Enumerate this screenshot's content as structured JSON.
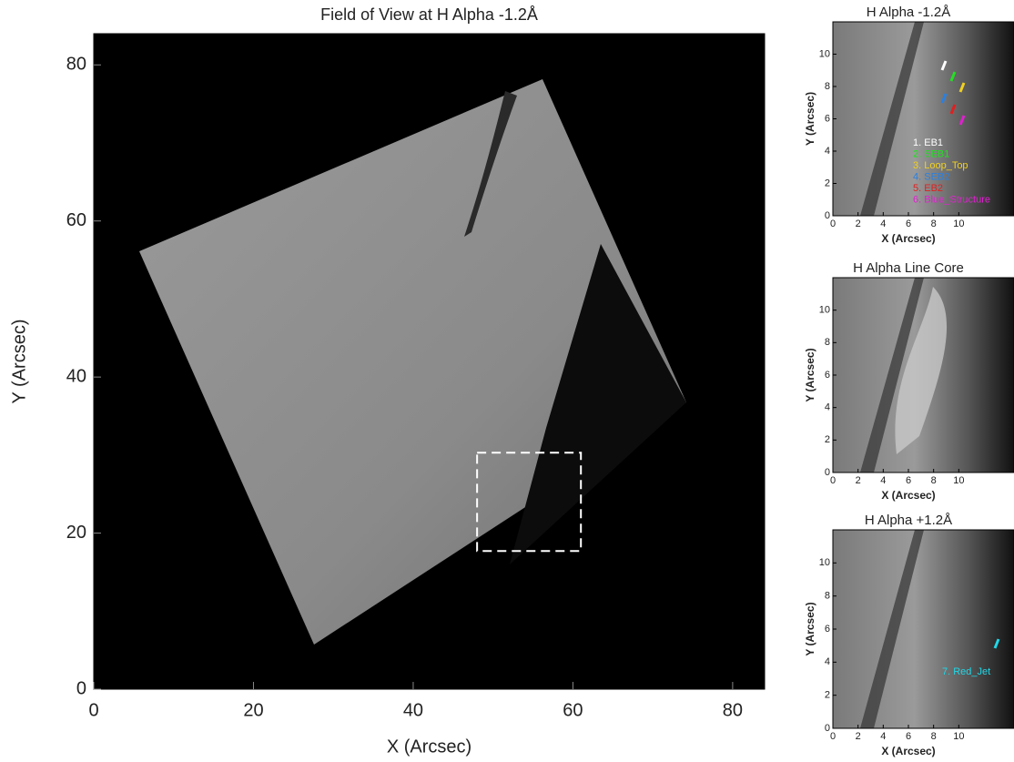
{
  "chart_data": [
    {
      "type": "image",
      "title": "Field of View at H Alpha -1.2Å",
      "x_label": "X (Arcsec)",
      "y_label": "Y (Arcsec)",
      "xlim": [
        0,
        84
      ],
      "ylim": [
        0,
        84
      ],
      "xticks": [
        0,
        20,
        40,
        60,
        80
      ],
      "yticks": [
        0,
        20,
        40,
        60,
        80
      ],
      "region": {
        "xlim": [
          48,
          61
        ],
        "ylim": [
          17.7,
          30.3
        ]
      }
    },
    {
      "type": "image",
      "title": "H Alpha -1.2Å",
      "x_label": "X (Arcsec)",
      "y_label": "Y (Arcsec)",
      "xlim": [
        0,
        12
      ],
      "ylim": [
        0,
        12
      ],
      "xticks": [
        0,
        2,
        4,
        6,
        8,
        10
      ],
      "yticks": [
        0,
        2,
        4,
        6,
        8,
        10
      ],
      "legend": [
        {
          "label": "1. EB1",
          "color": "#ffffff"
        },
        {
          "label": "2. SEB1",
          "color": "#22e022"
        },
        {
          "label": "3. Loop_Top",
          "color": "#f0d020"
        },
        {
          "label": "4. SEB2",
          "color": "#2a80e0"
        },
        {
          "label": "5. EB2",
          "color": "#e02020"
        },
        {
          "label": "6. Blue_Structure",
          "color": "#e020d0"
        }
      ]
    },
    {
      "type": "image",
      "title": "H Alpha Line Core",
      "x_label": "X (Arcsec)",
      "y_label": "Y (Arcsec)",
      "xlim": [
        0,
        12
      ],
      "ylim": [
        0,
        12
      ],
      "xticks": [
        0,
        2,
        4,
        6,
        8,
        10
      ],
      "yticks": [
        0,
        2,
        4,
        6,
        8,
        10
      ]
    },
    {
      "type": "image",
      "title": "H Alpha +1.2Å",
      "x_label": "X (Arcsec)",
      "y_label": "Y (Arcsec)",
      "xlim": [
        0,
        12
      ],
      "ylim": [
        0,
        12
      ],
      "xticks": [
        0,
        2,
        4,
        6,
        8,
        10
      ],
      "yticks": [
        0,
        2,
        4,
        6,
        8,
        10
      ],
      "legend": [
        {
          "label": "7. Red_Jet",
          "color": "#20d8e8"
        }
      ]
    }
  ]
}
